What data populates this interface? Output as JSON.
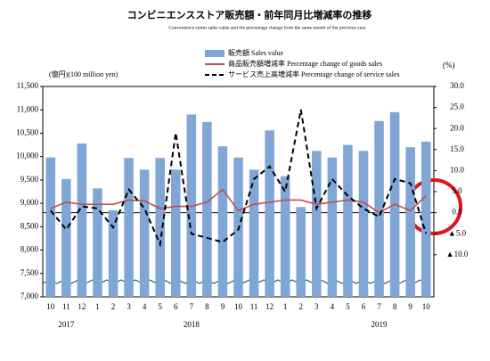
{
  "chart_data": {
    "type": "bar_line",
    "title": "コンビニエンスストア販売額・前年同月比増減率の推移",
    "subtitle": "Convenience stores sales value and the percentage change from the same month of the previous year",
    "y_axis_label": "(億円)(100 million yen)",
    "y2_axis_label": "(%)",
    "categories": [
      "10",
      "11",
      "12",
      "1",
      "2",
      "3",
      "4",
      "5",
      "6",
      "7",
      "8",
      "9",
      "10",
      "11",
      "12",
      "1",
      "2",
      "3",
      "4",
      "5",
      "6",
      "7",
      "8",
      "9",
      "10"
    ],
    "year_labels": [
      "2017",
      "2018",
      "2019"
    ],
    "series": [
      {
        "name": "販売額 Sales value",
        "color": "#7fa6d4",
        "kind": "bar",
        "values": [
          9980,
          9520,
          10280,
          9320,
          8850,
          9970,
          9720,
          9970,
          9720,
          10900,
          10740,
          10220,
          9980,
          9720,
          10560,
          9580,
          8920,
          10120,
          9980,
          10250,
          10120,
          10760,
          10950,
          10200,
          10320
        ]
      },
      {
        "name": "商品販売額増減率 Percentage change of goods sales",
        "color": "#c0504d",
        "kind": "line",
        "axis": "y2",
        "values": [
          1.0,
          2.5,
          2.0,
          2.0,
          2.0,
          3.0,
          2.8,
          1.0,
          1.5,
          1.5,
          2.5,
          5.5,
          0.5,
          2.0,
          2.5,
          3.0,
          3.0,
          2.0,
          2.5,
          3.0,
          2.5,
          0.0,
          2.0,
          0.5,
          4.0
        ]
      },
      {
        "name": "サービス売上高増減率 Percentage change of service sales",
        "color": "#000000",
        "kind": "dashed",
        "axis": "y2",
        "values": [
          0.5,
          -4.0,
          1.5,
          1.0,
          -3.5,
          5.5,
          1.0,
          -7.5,
          19.0,
          -5.0,
          -6.0,
          -7.0,
          -4.0,
          8.0,
          11.0,
          5.0,
          24.5,
          1.0,
          8.0,
          4.0,
          1.0,
          -1.0,
          8.0,
          7.0,
          -5.0
        ]
      }
    ],
    "ylim": [
      7000,
      11500
    ],
    "yticks": [
      {
        "value": 7000,
        "label": "7,000"
      },
      {
        "value": 7500,
        "label": "7,500"
      },
      {
        "value": 8000,
        "label": "8,000"
      },
      {
        "value": 8500,
        "label": "8,500"
      },
      {
        "value": 9000,
        "label": "9,000"
      },
      {
        "value": 9500,
        "label": "9,500"
      },
      {
        "value": 10000,
        "label": "10,000"
      },
      {
        "value": 10500,
        "label": "10,500"
      },
      {
        "value": 11000,
        "label": "11,000"
      },
      {
        "value": 11500,
        "label": "11,500"
      }
    ],
    "y2lim": [
      -20,
      30
    ],
    "y2ticks": [
      {
        "value": 30,
        "label": "30.0"
      },
      {
        "value": 25,
        "label": "25.0"
      },
      {
        "value": 20,
        "label": "20.0"
      },
      {
        "value": 15,
        "label": "15.0"
      },
      {
        "value": 10,
        "label": "10.0"
      },
      {
        "value": 5,
        "label": "5.0"
      },
      {
        "value": 0,
        "label": "0.0"
      },
      {
        "value": -5,
        "label": "▲5.0"
      },
      {
        "value": -10,
        "label": "▲10.0"
      }
    ]
  }
}
